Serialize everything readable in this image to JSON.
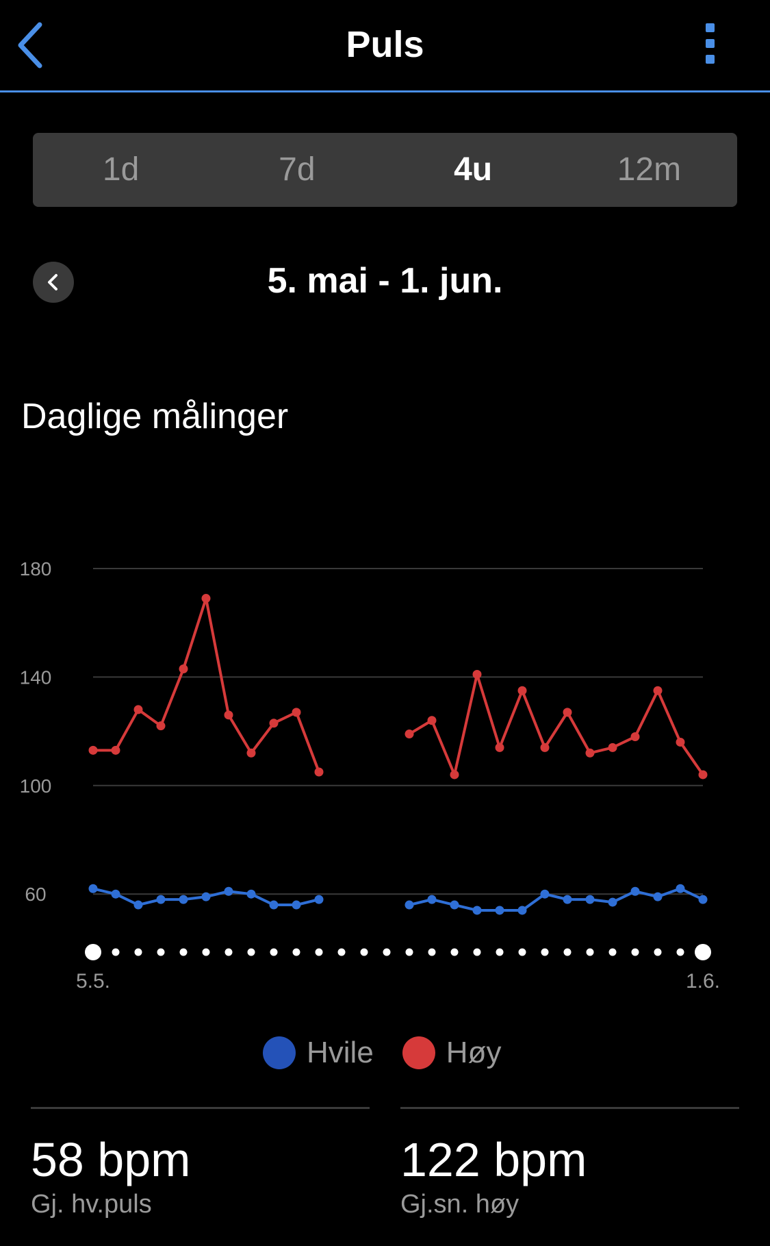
{
  "header": {
    "title": "Puls",
    "back_icon": "chevron-left-icon",
    "menu_icon": "more-vertical-icon",
    "accent": "#4a8fe7"
  },
  "tabs": [
    {
      "label": "1d",
      "active": false
    },
    {
      "label": "7d",
      "active": false
    },
    {
      "label": "4u",
      "active": true
    },
    {
      "label": "12m",
      "active": false
    }
  ],
  "date_range": {
    "label": "5. mai - 1. jun.",
    "prev_icon": "chevron-left-icon"
  },
  "section_title": "Daglige målinger",
  "chart_data": {
    "type": "line",
    "x": [
      "5.5.",
      "6.5.",
      "7.5.",
      "8.5.",
      "9.5.",
      "10.5.",
      "11.5.",
      "12.5.",
      "13.5.",
      "14.5.",
      "15.5.",
      "16.5.",
      "17.5.",
      "18.5.",
      "19.5.",
      "20.5.",
      "21.5.",
      "22.5.",
      "23.5.",
      "24.5.",
      "25.5.",
      "26.5.",
      "27.5.",
      "28.5.",
      "29.5.",
      "30.5.",
      "31.5.",
      "1.6."
    ],
    "x_tick_labels": [
      "5.5.",
      "1.6."
    ],
    "series": [
      {
        "name": "Hvile",
        "color": "#2f6fd6",
        "values": [
          62,
          60,
          56,
          58,
          58,
          59,
          61,
          60,
          56,
          56,
          58,
          null,
          null,
          null,
          56,
          58,
          56,
          54,
          54,
          54,
          60,
          58,
          58,
          57,
          61,
          59,
          62,
          58
        ]
      },
      {
        "name": "Høy",
        "color": "#d63a3a",
        "values": [
          113,
          113,
          128,
          122,
          143,
          169,
          126,
          112,
          123,
          127,
          105,
          null,
          null,
          null,
          119,
          124,
          104,
          141,
          114,
          135,
          114,
          127,
          112,
          114,
          118,
          135,
          116,
          104
        ]
      }
    ],
    "yticks": [
      60,
      100,
      140,
      180
    ],
    "ylim": [
      38,
      190
    ],
    "grid": true,
    "legend": "bottom-center"
  },
  "stats": [
    {
      "value": "58 bpm",
      "label": "Gj. hv.puls"
    },
    {
      "value": "122 bpm",
      "label": "Gj.sn. høy"
    }
  ]
}
